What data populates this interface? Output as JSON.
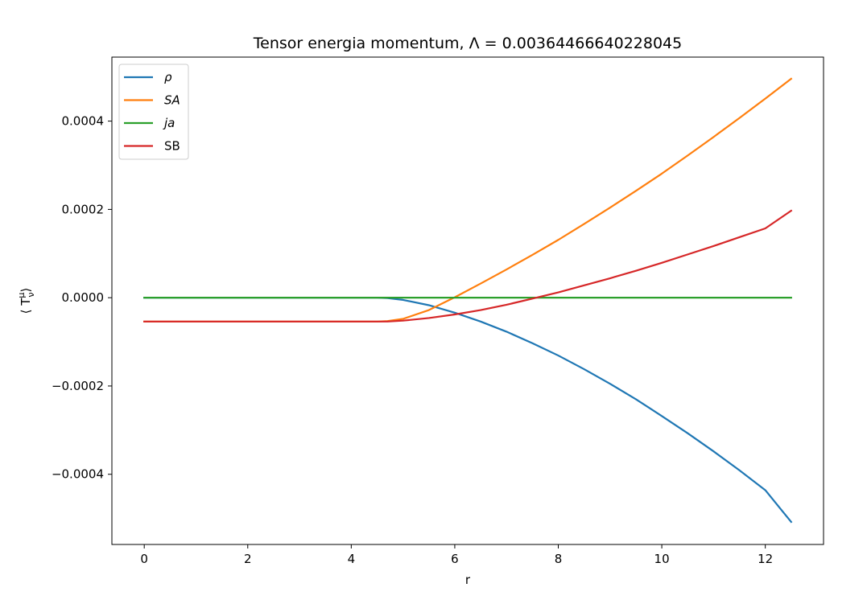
{
  "chart_data": {
    "type": "line",
    "title": "Tensor energia momentum, Λ = 0.00364466640228045",
    "xlabel": "r",
    "ylabel": "⟨ T",
    "ylabel_sup": "μ",
    "ylabel_sub": "ν",
    "ylabel_close": "⟩",
    "xlim": [
      -0.625,
      13.125
    ],
    "ylim": [
      -0.000559,
      0.000545
    ],
    "x_ticks": [
      0,
      2,
      4,
      6,
      8,
      10,
      12
    ],
    "x_tick_labels": [
      "0",
      "2",
      "4",
      "6",
      "8",
      "10",
      "12"
    ],
    "y_ticks": [
      -0.0004,
      -0.0002,
      0.0,
      0.0002,
      0.0004
    ],
    "y_tick_labels": [
      "−0.0004",
      "−0.0002",
      "0.0000",
      "0.0002",
      "0.0004"
    ],
    "grid": false,
    "legend_position": "upper-left",
    "series": [
      {
        "name": "ρ",
        "italic": true,
        "color": "#1f77b4",
        "x": [
          0,
          1,
          2,
          3,
          4,
          4.5,
          4.7,
          5,
          5.5,
          6,
          6.5,
          7,
          7.5,
          8,
          8.5,
          9,
          9.5,
          10,
          10.5,
          11,
          11.5,
          12,
          12.5
        ],
        "y": [
          0,
          0,
          0,
          0,
          0,
          0,
          -1e-06,
          -5e-06,
          -1.7e-05,
          -3.4e-05,
          -5.4e-05,
          -7.7e-05,
          -0.000103,
          -0.000131,
          -0.000162,
          -0.000195,
          -0.00023,
          -0.000268,
          -0.000307,
          -0.000348,
          -0.000391,
          -0.000436,
          -0.000508
        ]
      },
      {
        "name": "SA",
        "italic": true,
        "color": "#ff7f0e",
        "x": [
          0,
          1,
          2,
          3,
          4,
          4.5,
          4.7,
          5,
          5.5,
          6,
          6.5,
          7,
          7.5,
          8,
          8.5,
          9,
          9.5,
          10,
          10.5,
          11,
          11.5,
          12,
          12.5
        ],
        "y": [
          -5.4e-05,
          -5.4e-05,
          -5.4e-05,
          -5.4e-05,
          -5.4e-05,
          -5.4e-05,
          -5.3e-05,
          -4.8e-05,
          -2.8e-05,
          1e-06,
          3.2e-05,
          6.4e-05,
          9.7e-05,
          0.000131,
          0.000167,
          0.000204,
          0.000242,
          0.000281,
          0.000322,
          0.000364,
          0.000407,
          0.000451,
          0.000496
        ]
      },
      {
        "name": "ja",
        "italic": true,
        "color": "#2ca02c",
        "x": [
          0,
          12.5
        ],
        "y": [
          0,
          0
        ]
      },
      {
        "name": "SB",
        "italic": false,
        "color": "#d62728",
        "x": [
          0,
          1,
          2,
          3,
          4,
          4.5,
          4.7,
          5,
          5.5,
          6,
          6.5,
          7,
          7.5,
          8,
          8.5,
          9,
          9.5,
          10,
          10.5,
          11,
          11.5,
          12,
          12.5
        ],
        "y": [
          -5.4e-05,
          -5.4e-05,
          -5.4e-05,
          -5.4e-05,
          -5.4e-05,
          -5.4e-05,
          -5.4e-05,
          -5.2e-05,
          -4.6e-05,
          -3.8e-05,
          -2.8e-05,
          -1.6e-05,
          -2e-06,
          1.2e-05,
          2.8e-05,
          4.4e-05,
          6.1e-05,
          7.9e-05,
          9.8e-05,
          0.000117,
          0.000137,
          0.000157,
          0.000197
        ]
      }
    ]
  }
}
